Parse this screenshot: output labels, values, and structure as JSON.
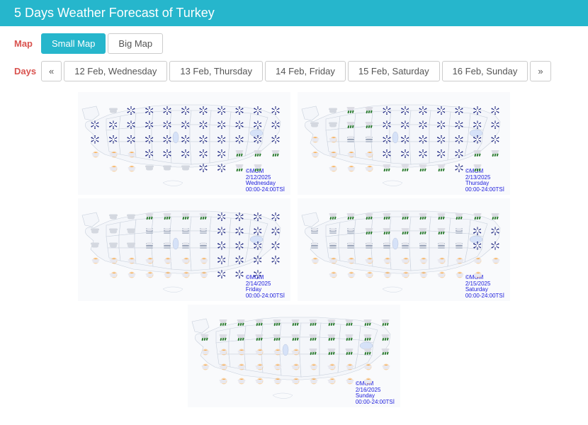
{
  "header": {
    "title": "5 Days Weather Forecast of Turkey"
  },
  "controls": {
    "map_label": "Map",
    "days_label": "Days",
    "map_buttons": [
      {
        "label": "Small Map",
        "active": true
      },
      {
        "label": "Big Map",
        "active": false
      }
    ],
    "nav_prev": "«",
    "nav_next": "»",
    "day_buttons": [
      {
        "label": "12 Feb, Wednesday"
      },
      {
        "label": "13 Feb, Thursday"
      },
      {
        "label": "14 Feb, Friday"
      },
      {
        "label": "15 Feb, Saturday"
      },
      {
        "label": "16 Feb, Sunday"
      }
    ]
  },
  "attribution": "©MGM",
  "time_range": "00:00-24:00TSİ",
  "maps": [
    {
      "date": "2/12/2025",
      "day": "Wednesday",
      "pattern": "very_snowy"
    },
    {
      "date": "2/13/2025",
      "day": "Thursday",
      "pattern": "snowy_east_mixed_west"
    },
    {
      "date": "2/14/2025",
      "day": "Friday",
      "pattern": "mixed_snow_east"
    },
    {
      "date": "2/15/2025",
      "day": "Saturday",
      "pattern": "mostly_clear_rain_north"
    },
    {
      "date": "2/16/2025",
      "day": "Sunday",
      "pattern": "sunny_south_rain_north"
    }
  ],
  "colors": {
    "accent": "#26b6cc",
    "label": "#d9534f",
    "meta_text": "#2020dd",
    "province_fill": "#f4f6fa",
    "province_stroke": "#c8d0dc",
    "snow": "#1a237e",
    "sun": "#f7a23b",
    "rain": "#2e7d32",
    "cloud": "#d4d8e0"
  },
  "icon_grid": {
    "cols": 11,
    "rows": 5,
    "x_start_pct": 8,
    "x_step_pct": 8.5,
    "y_start_pct": 18,
    "y_step_pct": 14
  }
}
